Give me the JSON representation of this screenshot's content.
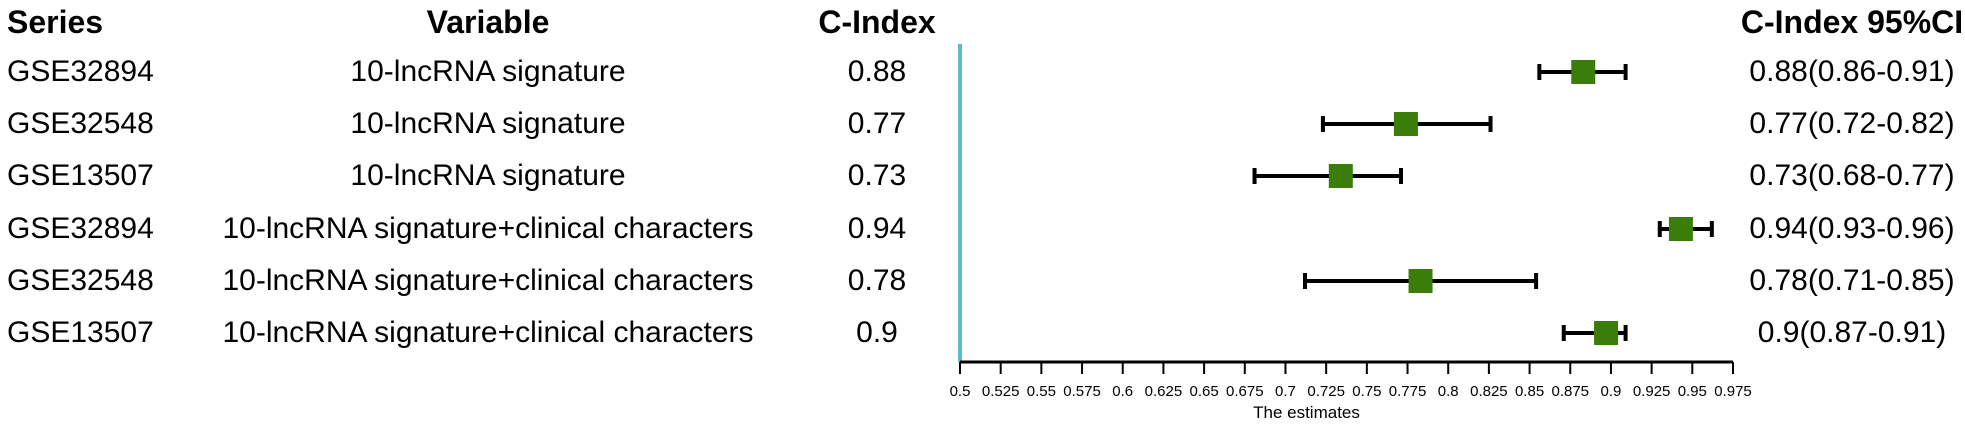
{
  "headers": {
    "series": "Series",
    "variable": "Variable",
    "cindex": "C-Index",
    "ci": "C-Index 95%CI"
  },
  "rows": [
    {
      "series": "GSE32894",
      "variable": "10-lncRNA signature",
      "cindex": "0.88",
      "ci": "0.88(0.86-0.91)"
    },
    {
      "series": "GSE32548",
      "variable": "10-lncRNA signature",
      "cindex": "0.77",
      "ci": "0.77(0.72-0.82)"
    },
    {
      "series": "GSE13507",
      "variable": "10-lncRNA signature",
      "cindex": "0.73",
      "ci": "0.73(0.68-0.77)"
    },
    {
      "series": "GSE32894",
      "variable": "10-lncRNA signature+clinical characters",
      "cindex": "0.94",
      "ci": "0.94(0.93-0.96)"
    },
    {
      "series": "GSE32548",
      "variable": "10-lncRNA signature+clinical characters",
      "cindex": "0.78",
      "ci": "0.78(0.71-0.85)"
    },
    {
      "series": "GSE13507",
      "variable": "10-lncRNA signature+clinical characters",
      "cindex": "0.9",
      "ci": "0.9(0.87-0.91)"
    }
  ],
  "chart_data": {
    "type": "forest",
    "xlabel": "The estimates",
    "xlim": [
      0.5,
      0.975
    ],
    "ticks": [
      "0.5",
      "0.525",
      "0.55",
      "0.575",
      "0.6",
      "0.625",
      "0.65",
      "0.675",
      "0.7",
      "0.725",
      "0.75",
      "0.775",
      "0.8",
      "0.825",
      "0.85",
      "0.875",
      "0.9",
      "0.925",
      "0.95",
      "0.975"
    ],
    "reference_line": 0.5,
    "points": [
      {
        "estimate": 0.883,
        "lower": 0.856,
        "upper": 0.909
      },
      {
        "estimate": 0.774,
        "lower": 0.723,
        "upper": 0.826
      },
      {
        "estimate": 0.734,
        "lower": 0.681,
        "upper": 0.771
      },
      {
        "estimate": 0.943,
        "lower": 0.93,
        "upper": 0.962
      },
      {
        "estimate": 0.783,
        "lower": 0.712,
        "upper": 0.854
      },
      {
        "estimate": 0.897,
        "lower": 0.871,
        "upper": 0.909
      }
    ],
    "colors": {
      "marker": "#3a7d0a",
      "reference": "#5fb9c9",
      "whisker": "#000000"
    }
  }
}
